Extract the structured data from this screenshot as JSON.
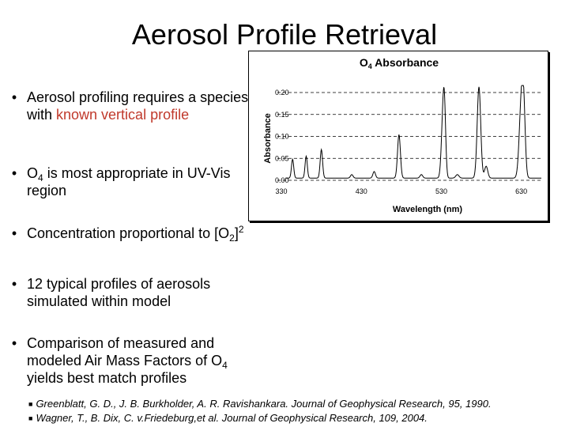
{
  "slide": {
    "title": "Aerosol Profile Retrieval"
  },
  "bullets": {
    "b1": {
      "marker": "•",
      "part1": "Aerosol profiling requires a species with ",
      "highlight": "known vertical profile"
    },
    "b2": {
      "marker": "•",
      "p1": "O",
      "sub": "4",
      "p2": " is most appropriate in UV-Vis region"
    },
    "b3": {
      "marker": "•",
      "p1": "Concentration proportional to [O",
      "sub": "2",
      "p2": "]",
      "sup": "2"
    },
    "b4": {
      "marker": "•",
      "text": "12 typical profiles of aerosols simulated within model"
    },
    "b5": {
      "marker": "•",
      "p1": "Comparison of measured and modeled Air Mass Factors of O",
      "sub": "4",
      "p2": " yields best match profiles"
    }
  },
  "references": [
    {
      "marker": "■",
      "text": "Greenblatt, G. D., J. B. Burkholder, A. R. Ravishankara. Journal of Geophysical Research, 95, 1990."
    },
    {
      "marker": "■",
      "text": "Wagner, T., B. Dix, C. v.Friedeburg,et al. Journal of Geophysical Research, 109, 2004."
    }
  ],
  "chart_data": {
    "type": "line",
    "title_main": "O",
    "title_sub": "4",
    "title_rest": " Absorbance",
    "xlabel": "Wavelength (nm)",
    "ylabel": "Absorbance",
    "xlim": [
      325,
      655
    ],
    "ylim": [
      0,
      0.2
    ],
    "x_ticks": [
      330,
      430,
      530,
      630
    ],
    "y_ticks": [
      0.0,
      0.05,
      0.1,
      0.15,
      0.2
    ],
    "y_tick_labels": [
      "0.00",
      "0.05",
      "0.10",
      "0.15",
      "0.20"
    ],
    "grid": "dashed horizontal",
    "baseline": 0.005,
    "peaks": [
      {
        "x": 344,
        "y": 0.048,
        "w": 1.4
      },
      {
        "x": 361,
        "y": 0.055,
        "w": 1.4
      },
      {
        "x": 380,
        "y": 0.07,
        "w": 1.5
      },
      {
        "x": 418,
        "y": 0.013,
        "w": 1.6
      },
      {
        "x": 446,
        "y": 0.02,
        "w": 1.6
      },
      {
        "x": 477,
        "y": 0.104,
        "w": 1.8
      },
      {
        "x": 505,
        "y": 0.013,
        "w": 1.7
      },
      {
        "x": 532,
        "y": 0.137,
        "w": 2.0
      },
      {
        "x": 534,
        "y": 0.115,
        "w": 1.6
      },
      {
        "x": 550,
        "y": 0.013,
        "w": 2.0
      },
      {
        "x": 577,
        "y": 0.213,
        "w": 2.2
      },
      {
        "x": 586,
        "y": 0.032,
        "w": 2.0
      },
      {
        "x": 630,
        "y": 0.174,
        "w": 2.6
      },
      {
        "x": 633,
        "y": 0.125,
        "w": 2.0
      }
    ]
  }
}
